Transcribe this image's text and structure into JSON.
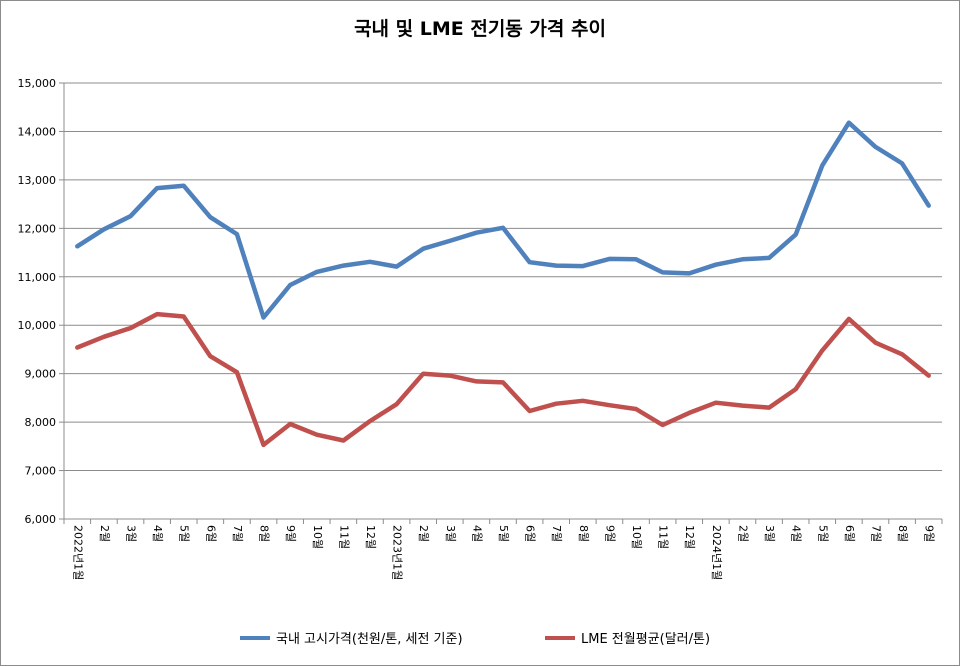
{
  "chart_data": {
    "type": "line",
    "title": "국내 및 LME 전기동 가격 추이",
    "ylim": [
      6000,
      15000
    ],
    "yticks": [
      "6,000",
      "7,000",
      "8,000",
      "9,000",
      "10,000",
      "11,000",
      "12,000",
      "13,000",
      "14,000",
      "15,000"
    ],
    "grid": true,
    "legend_position": "bottom",
    "categories": [
      "2022년1월",
      "2월",
      "3월",
      "4월",
      "5월",
      "6월",
      "7월",
      "8월",
      "9월",
      "10월",
      "11월",
      "12월",
      "2023년1월",
      "2월",
      "3월",
      "4월",
      "5월",
      "6월",
      "7월",
      "8월",
      "9월",
      "10월",
      "11월",
      "12월",
      "2024년1월",
      "2월",
      "3월",
      "4월",
      "5월",
      "6월",
      "7월",
      "8월",
      "9월"
    ],
    "series": [
      {
        "name": "국내 고시가격(천원/톤, 세전 기준)",
        "color": "#4f81bd",
        "values": [
          11630,
          11980,
          12250,
          12830,
          12880,
          12230,
          11880,
          10160,
          10830,
          11100,
          11230,
          11310,
          11210,
          11580,
          11740,
          11910,
          12010,
          11300,
          11230,
          11220,
          11370,
          11360,
          11090,
          11070,
          11250,
          11360,
          11390,
          11870,
          13300,
          14180,
          13680,
          13340,
          12470
        ]
      },
      {
        "name": "LME 전월평균(달러/톤)",
        "color": "#c0504d",
        "values": [
          9540,
          9760,
          9940,
          10230,
          10180,
          9360,
          9030,
          7530,
          7960,
          7740,
          7620,
          8020,
          8370,
          9000,
          8960,
          8840,
          8820,
          8230,
          8380,
          8440,
          8350,
          8270,
          7940,
          8190,
          8400,
          8340,
          8300,
          8680,
          9480,
          10130,
          9640,
          9400,
          8960
        ]
      }
    ]
  }
}
